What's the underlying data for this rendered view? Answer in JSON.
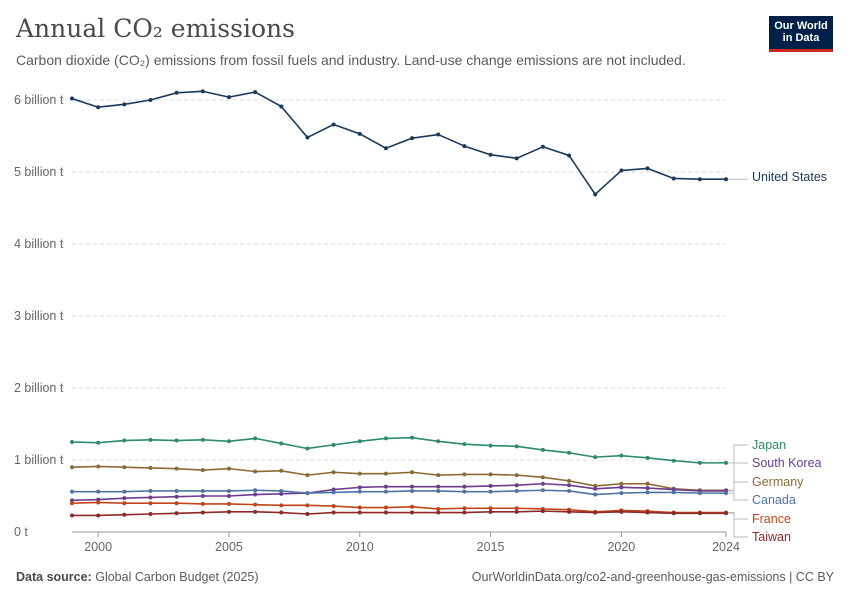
{
  "header": {
    "title": "Annual CO₂ emissions",
    "subtitle": "Carbon dioxide (CO₂) emissions from fossil fuels and industry. Land-use change emissions are not included."
  },
  "logo": {
    "line1": "Our World",
    "line2": "in Data"
  },
  "footer": {
    "source_label": "Data source:",
    "source_value": "Global Carbon Budget (2025)",
    "url": "OurWorldinData.org/co2-and-greenhouse-gas-emissions | CC BY"
  },
  "chart_data": {
    "type": "line",
    "x": [
      1999,
      2000,
      2001,
      2002,
      2003,
      2004,
      2005,
      2006,
      2007,
      2008,
      2009,
      2010,
      2011,
      2012,
      2013,
      2014,
      2015,
      2016,
      2017,
      2018,
      2019,
      2020,
      2021,
      2022,
      2023,
      2024
    ],
    "xlim": [
      1999,
      2024
    ],
    "ylim": [
      0,
      6000000000
    ],
    "x_ticks": [
      {
        "value": 2000,
        "label": "2000"
      },
      {
        "value": 2005,
        "label": "2005"
      },
      {
        "value": 2010,
        "label": "2010"
      },
      {
        "value": 2015,
        "label": "2015"
      },
      {
        "value": 2020,
        "label": "2020"
      },
      {
        "value": 2024,
        "label": "2024"
      }
    ],
    "y_ticks": [
      {
        "value": 0,
        "label": "0 t"
      },
      {
        "value": 1000000000,
        "label": "1 billion t"
      },
      {
        "value": 2000000000,
        "label": "2 billion t"
      },
      {
        "value": 3000000000,
        "label": "3 billion t"
      },
      {
        "value": 4000000000,
        "label": "4 billion t"
      },
      {
        "value": 5000000000,
        "label": "5 billion t"
      },
      {
        "value": 6000000000,
        "label": "6 billion t"
      }
    ],
    "grid": "horizontal-dashed",
    "legend": "right-end-labels",
    "series": [
      {
        "name": "United States",
        "color": "#1a3a5c",
        "values": [
          6020000000,
          5900000000,
          5940000000,
          6000000000,
          6100000000,
          6120000000,
          6040000000,
          6110000000,
          5910000000,
          5480000000,
          5660000000,
          5530000000,
          5330000000,
          5470000000,
          5520000000,
          5360000000,
          5240000000,
          5190000000,
          5350000000,
          5230000000,
          4690000000,
          5020000000,
          5050000000,
          4910000000,
          4900000000,
          4900000000
        ]
      },
      {
        "name": "Japan",
        "color": "#2e8b6b",
        "values": [
          1250000000,
          1240000000,
          1270000000,
          1280000000,
          1270000000,
          1280000000,
          1260000000,
          1300000000,
          1230000000,
          1160000000,
          1210000000,
          1260000000,
          1300000000,
          1310000000,
          1260000000,
          1220000000,
          1200000000,
          1190000000,
          1140000000,
          1100000000,
          1040000000,
          1060000000,
          1030000000,
          990000000,
          960000000,
          960000000
        ]
      },
      {
        "name": "Germany",
        "color": "#8c6a35",
        "values": [
          900000000,
          910000000,
          900000000,
          890000000,
          880000000,
          860000000,
          880000000,
          840000000,
          850000000,
          790000000,
          830000000,
          810000000,
          810000000,
          830000000,
          790000000,
          800000000,
          800000000,
          790000000,
          760000000,
          710000000,
          640000000,
          670000000,
          670000000,
          600000000,
          580000000,
          580000000
        ]
      },
      {
        "name": "South Korea",
        "color": "#6c3d8e",
        "values": [
          440000000,
          450000000,
          470000000,
          480000000,
          490000000,
          500000000,
          500000000,
          520000000,
          530000000,
          540000000,
          590000000,
          620000000,
          630000000,
          630000000,
          630000000,
          630000000,
          640000000,
          650000000,
          670000000,
          650000000,
          600000000,
          620000000,
          610000000,
          590000000,
          570000000,
          570000000
        ]
      },
      {
        "name": "Canada",
        "color": "#4f74a0",
        "values": [
          560000000,
          560000000,
          560000000,
          570000000,
          570000000,
          570000000,
          570000000,
          580000000,
          570000000,
          540000000,
          550000000,
          560000000,
          560000000,
          570000000,
          570000000,
          560000000,
          560000000,
          570000000,
          580000000,
          570000000,
          520000000,
          540000000,
          550000000,
          550000000,
          540000000,
          540000000
        ]
      },
      {
        "name": "France",
        "color": "#c0461a",
        "values": [
          400000000,
          410000000,
          400000000,
          400000000,
          400000000,
          390000000,
          390000000,
          380000000,
          370000000,
          370000000,
          360000000,
          340000000,
          340000000,
          350000000,
          320000000,
          330000000,
          330000000,
          330000000,
          320000000,
          310000000,
          280000000,
          300000000,
          290000000,
          270000000,
          270000000,
          270000000
        ]
      },
      {
        "name": "Taiwan",
        "color": "#8c2a2a",
        "values": [
          230000000,
          230000000,
          240000000,
          250000000,
          260000000,
          270000000,
          280000000,
          280000000,
          270000000,
          250000000,
          270000000,
          270000000,
          270000000,
          270000000,
          270000000,
          270000000,
          280000000,
          280000000,
          290000000,
          280000000,
          270000000,
          280000000,
          270000000,
          260000000,
          260000000,
          260000000
        ]
      }
    ]
  }
}
